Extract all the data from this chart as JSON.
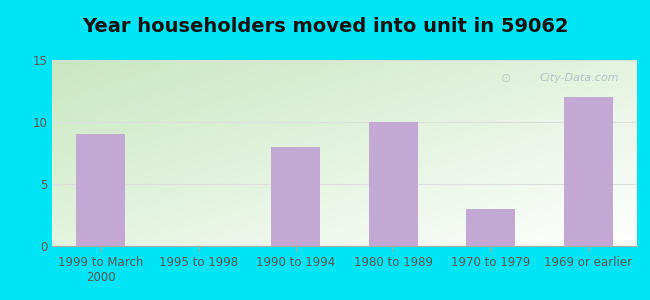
{
  "title": "Year householders moved into unit in 59062",
  "categories": [
    "1999 to March\n2000",
    "1995 to 1998",
    "1990 to 1994",
    "1980 to 1989",
    "1970 to 1979",
    "1969 or earlier"
  ],
  "values": [
    9,
    0,
    8,
    10,
    3,
    12
  ],
  "bar_color": "#c4a8d4",
  "ylim": [
    0,
    15
  ],
  "yticks": [
    0,
    5,
    10,
    15
  ],
  "background_outer": "#00e5f5",
  "background_inner_topleft": "#c8e8c0",
  "background_inner_bottomright": "#ffffff",
  "grid_color": "#dddddd",
  "title_fontsize": 14,
  "tick_fontsize": 8.5,
  "watermark_text": "City-Data.com",
  "watermark_color": "#a8bfc0"
}
